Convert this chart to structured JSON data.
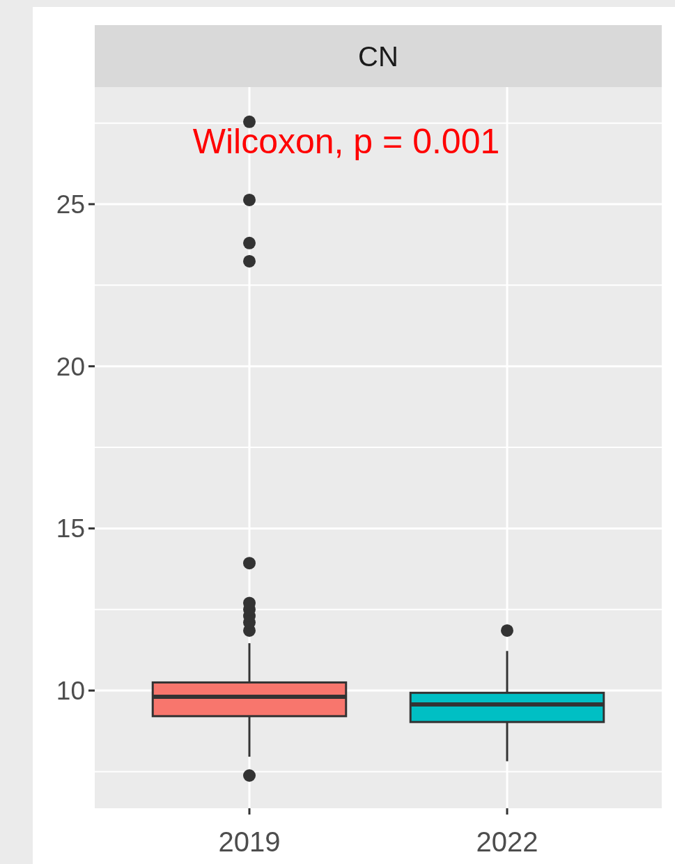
{
  "chart_data": {
    "type": "box",
    "title": "CN",
    "categories": [
      "2019",
      "2022"
    ],
    "colors": [
      "#f8766d",
      "#00bfc4"
    ],
    "boxes": [
      {
        "low": 7.96,
        "q1": 9.21,
        "median": 9.81,
        "q3": 10.25,
        "high": 11.46,
        "outliers": [
          7.38,
          11.85,
          12.1,
          12.3,
          12.5,
          12.7,
          13.93,
          23.24,
          23.8,
          25.13,
          27.54
        ]
      },
      {
        "low": 7.82,
        "q1": 9.03,
        "median": 9.57,
        "q3": 9.93,
        "high": 11.22,
        "outliers": [
          11.85
        ]
      }
    ],
    "ylim": [
      6.37,
      28.61
    ],
    "yticks": [
      10,
      15,
      20,
      25
    ],
    "grid": true,
    "annotations": [
      "Wilcoxon, p = 0.001"
    ]
  }
}
